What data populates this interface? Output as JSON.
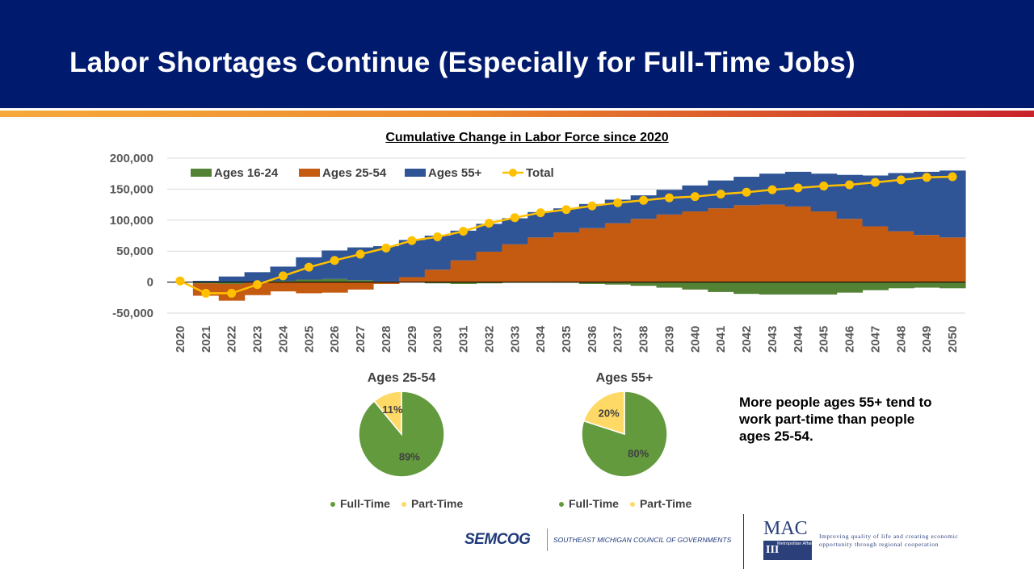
{
  "slide": {
    "title": "Labor Shortages Continue (Especially for Full-Time Jobs)",
    "note": "More people ages 55+ tend to work part-time than people ages 25-54."
  },
  "footer": {
    "semcog_logo": "SEMCOG",
    "semcog_name": "SOUTHEAST MICHIGAN COUNCIL OF GOVERNMENTS",
    "mac_logo": "MAC",
    "mac_badge": "Metropolitan Affairs Coalition",
    "mac_tagline": "Improving quality of life and creating economic opportunity through regional cooperation"
  },
  "colors": {
    "header_bg": "#001a6e",
    "ages_16_24": "#548235",
    "ages_25_54": "#c55a11",
    "ages_55_plus": "#2f5597",
    "total": "#ffc000",
    "full_time": "#629a3d",
    "part_time": "#ffd966"
  },
  "chart_data": [
    {
      "type": "bar",
      "stacked": true,
      "title": "Cumulative Change in Labor Force since 2020",
      "categories": [
        "2020",
        "2021",
        "2022",
        "2023",
        "2024",
        "2025",
        "2026",
        "2027",
        "2028",
        "2029",
        "2030",
        "2031",
        "2032",
        "2033",
        "2034",
        "2035",
        "2036",
        "2037",
        "2038",
        "2039",
        "2040",
        "2041",
        "2042",
        "2043",
        "2044",
        "2045",
        "2046",
        "2047",
        "2048",
        "2049",
        "2050"
      ],
      "ylim": [
        -50000,
        200000
      ],
      "yticks": [
        -50000,
        0,
        50000,
        100000,
        150000,
        200000
      ],
      "ytick_labels": [
        "-50,000",
        "0",
        "50,000",
        "100,000",
        "150,000",
        "200,000"
      ],
      "grid": true,
      "legend_position": "top-left",
      "series": [
        {
          "name": "Ages 16-24",
          "type": "bar",
          "color": "#548235",
          "values": [
            0,
            -2000,
            -3000,
            -1000,
            2000,
            4000,
            5000,
            3000,
            1000,
            0,
            -2000,
            -3000,
            -2000,
            -1000,
            -1000,
            -1000,
            -3000,
            -4000,
            -6000,
            -9000,
            -12000,
            -16000,
            -19000,
            -20000,
            -20000,
            -20000,
            -17000,
            -13000,
            -10000,
            -9000,
            -10000
          ]
        },
        {
          "name": "Ages 25-54",
          "type": "bar",
          "color": "#c55a11",
          "values": [
            0,
            -20000,
            -27000,
            -20000,
            -15000,
            -18000,
            -17000,
            -12000,
            -3000,
            8000,
            20000,
            35000,
            49000,
            61000,
            72000,
            80000,
            87000,
            95000,
            102000,
            109000,
            114000,
            119000,
            124000,
            125000,
            122000,
            114000,
            102000,
            90000,
            82000,
            76000,
            72000
          ]
        },
        {
          "name": "Ages 55+",
          "type": "bar",
          "color": "#2f5597",
          "values": [
            0,
            2000,
            9000,
            16000,
            23000,
            36000,
            46000,
            53000,
            57000,
            60000,
            55000,
            48000,
            45000,
            42000,
            41000,
            39000,
            39000,
            38000,
            38000,
            40000,
            42000,
            45000,
            46000,
            50000,
            56000,
            61000,
            71000,
            82000,
            94000,
            102000,
            108000
          ]
        },
        {
          "name": "Total",
          "type": "line",
          "color": "#ffc000",
          "values": [
            2000,
            -18000,
            -18000,
            -4000,
            10000,
            24000,
            35000,
            45000,
            55000,
            67000,
            73000,
            82000,
            95000,
            104000,
            112000,
            117000,
            123000,
            128000,
            132000,
            136000,
            138000,
            142000,
            145000,
            149000,
            152000,
            155000,
            157000,
            161000,
            165000,
            169000,
            170000
          ]
        }
      ]
    },
    {
      "type": "pie",
      "title": "Ages 25-54",
      "labels": [
        "Full-Time",
        "Part-Time"
      ],
      "values": [
        89,
        11
      ],
      "value_labels": [
        "89%",
        "11%"
      ],
      "colors": [
        "#629a3d",
        "#ffd966"
      ],
      "legend_position": "bottom"
    },
    {
      "type": "pie",
      "title": "Ages 55+",
      "labels": [
        "Full-Time",
        "Part-Time"
      ],
      "values": [
        80,
        20
      ],
      "value_labels": [
        "80%",
        "20%"
      ],
      "colors": [
        "#629a3d",
        "#ffd966"
      ],
      "legend_position": "bottom"
    }
  ]
}
